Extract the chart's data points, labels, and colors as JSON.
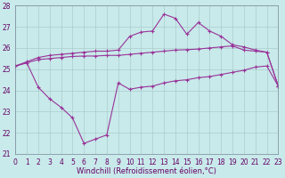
{
  "background_color": "#c8eaea",
  "grid_color": "#aacccc",
  "line_color": "#993399",
  "xlim": [
    0,
    23
  ],
  "ylim": [
    21,
    28
  ],
  "yticks": [
    21,
    22,
    23,
    24,
    25,
    26,
    27,
    28
  ],
  "xticks": [
    0,
    1,
    2,
    3,
    4,
    5,
    6,
    7,
    8,
    9,
    10,
    11,
    12,
    13,
    14,
    15,
    16,
    17,
    18,
    19,
    20,
    21,
    22,
    23
  ],
  "line1_x": [
    0,
    1,
    2,
    3,
    4,
    5,
    6,
    7,
    8,
    9,
    10,
    11,
    12,
    13,
    14,
    15,
    16,
    17,
    18,
    19,
    20,
    21,
    22,
    23
  ],
  "line1_y": [
    25.15,
    25.3,
    24.15,
    23.6,
    23.2,
    22.7,
    21.5,
    21.7,
    21.9,
    24.35,
    24.05,
    24.15,
    24.2,
    24.35,
    24.45,
    24.5,
    24.6,
    24.65,
    24.75,
    24.85,
    24.95,
    25.1,
    25.15,
    24.2
  ],
  "line2_x": [
    0,
    2,
    3,
    4,
    5,
    6,
    7,
    8,
    9,
    10,
    11,
    12,
    13,
    14,
    15,
    16,
    17,
    18,
    19,
    20,
    21,
    22,
    23
  ],
  "line2_y": [
    25.15,
    25.45,
    25.5,
    25.55,
    25.6,
    25.62,
    25.62,
    25.65,
    25.65,
    25.7,
    25.75,
    25.8,
    25.85,
    25.9,
    25.92,
    25.95,
    26.0,
    26.05,
    26.1,
    25.9,
    25.85,
    25.8,
    24.2
  ],
  "line3_x": [
    0,
    1,
    2,
    3,
    4,
    5,
    6,
    7,
    8,
    9,
    10,
    11,
    12,
    13,
    14,
    15,
    16,
    17,
    18,
    19,
    20,
    21,
    22,
    23
  ],
  "line3_y": [
    25.15,
    25.35,
    25.55,
    25.65,
    25.7,
    25.75,
    25.8,
    25.85,
    25.85,
    25.9,
    26.55,
    26.75,
    26.8,
    27.6,
    27.4,
    26.65,
    27.2,
    26.8,
    26.55,
    26.15,
    26.05,
    25.9,
    25.8,
    24.2
  ],
  "xlabel": "Windchill (Refroidissement éolien,°C)",
  "font_color": "#660066",
  "tick_font_size": 5.5,
  "xlabel_font_size": 6.0
}
